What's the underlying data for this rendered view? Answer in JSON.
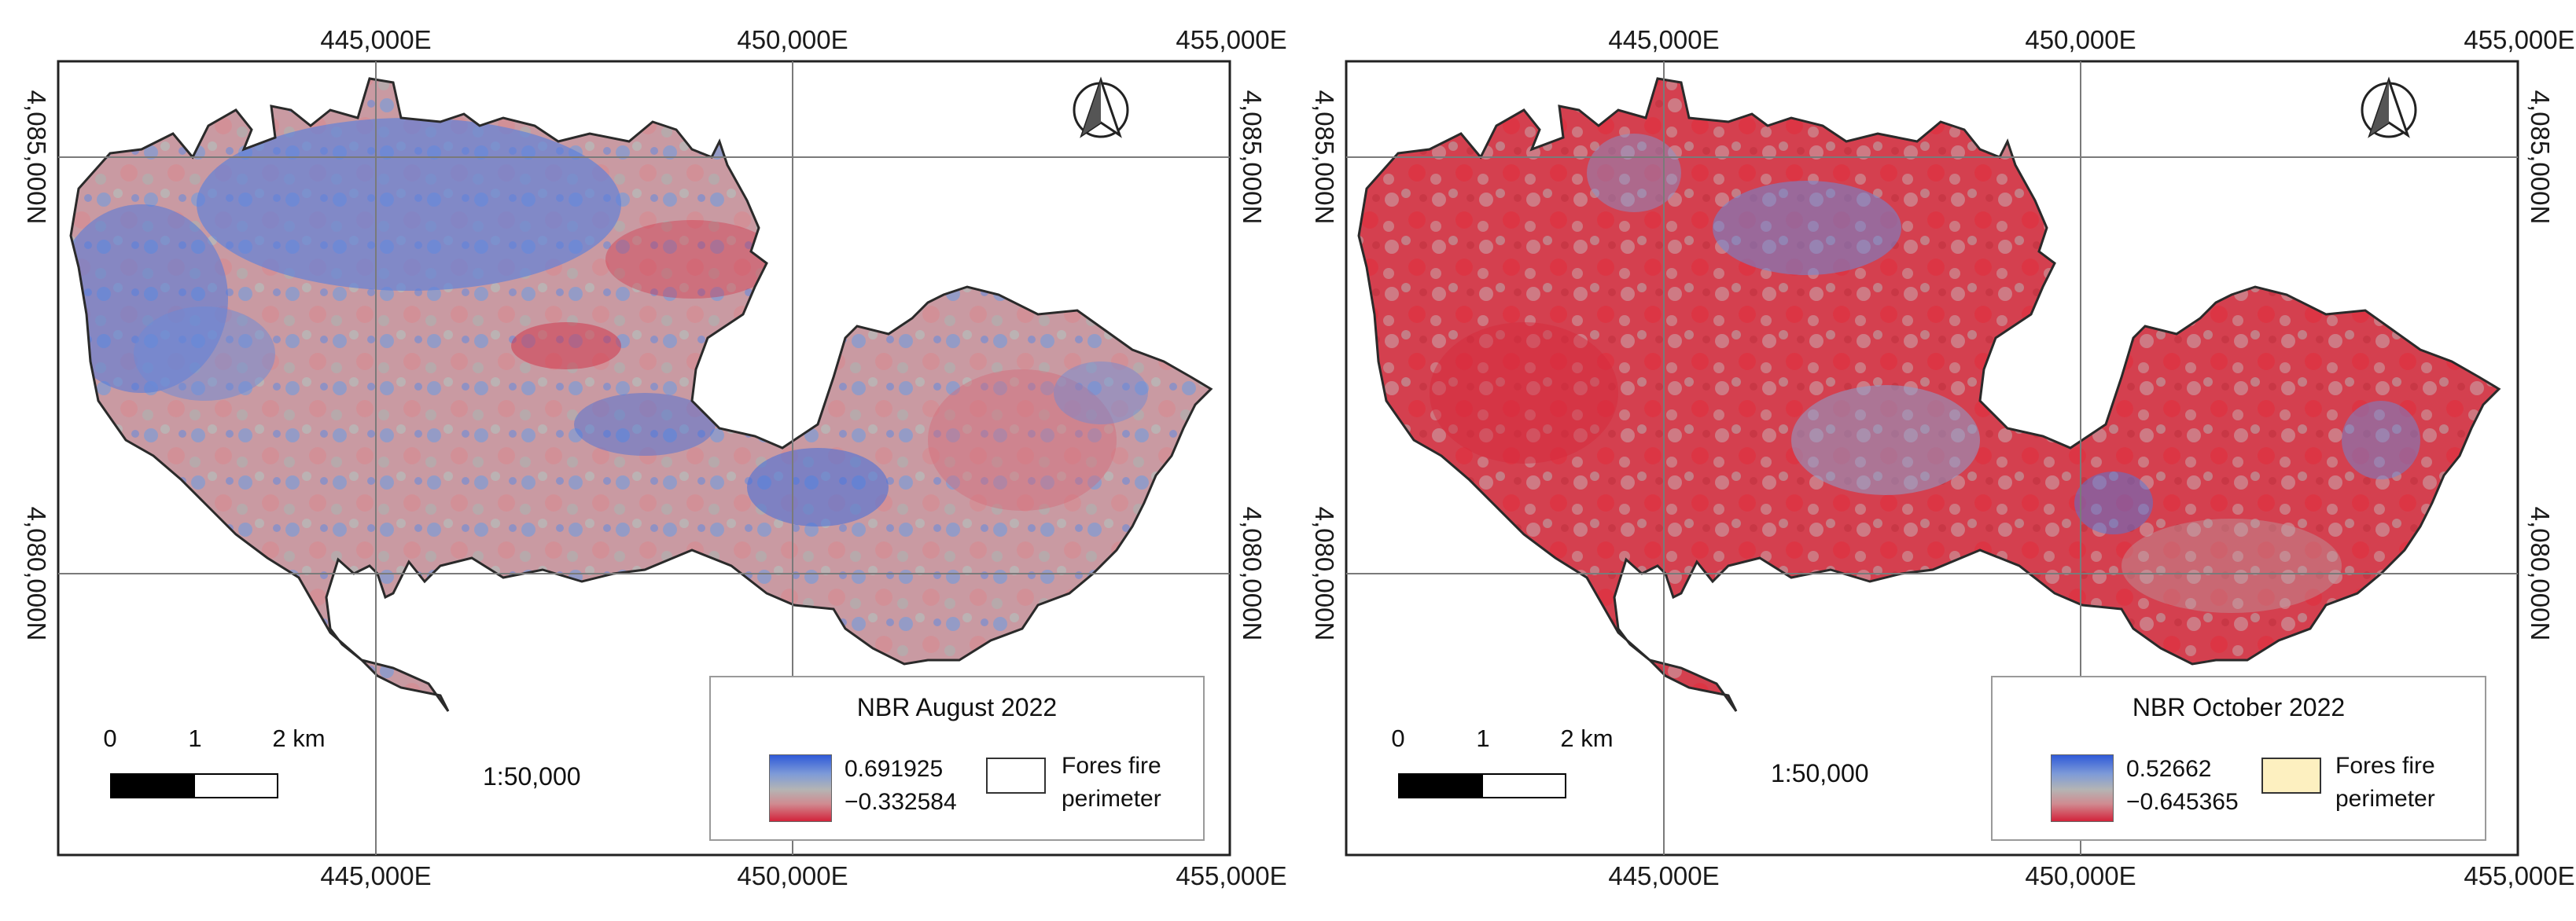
{
  "panels": [
    {
      "id": "august",
      "legend": {
        "title": "NBR August 2022",
        "max": "0.691925",
        "min": "−0.332584",
        "perimeter_label_line1": "Fores fire",
        "perimeter_label_line2": "perimeter",
        "perimeter_fill": "#ffffff"
      },
      "easting_top": [
        "445,000E",
        "450,000E",
        "455,000E"
      ],
      "easting_bottom": [
        "445,000E",
        "450,000E",
        "455,000E"
      ],
      "northing_left": [
        "4,085,000N",
        "4,080,000N"
      ],
      "northing_right": [
        "4,085,000N",
        "4,080,000N"
      ],
      "scale_ratio": "1:50,000",
      "scale_bar": {
        "labels": [
          "0",
          "1",
          "2 km"
        ]
      },
      "map_tint": "blue-dominant"
    },
    {
      "id": "october",
      "legend": {
        "title": "NBR October 2022",
        "max": "0.52662",
        "min": "−0.645365",
        "perimeter_label_line1": "Fores fire",
        "perimeter_label_line2": "perimeter",
        "perimeter_fill": "#fdf0c0"
      },
      "easting_top": [
        "445,000E",
        "450,000E",
        "455,000E"
      ],
      "easting_bottom": [
        "445,000E",
        "450,000E",
        "455,000E"
      ],
      "northing_left": [
        "4,085,000N",
        "4,080,000N"
      ],
      "northing_right": [
        "4,085,000N",
        "4,080,000N"
      ],
      "scale_ratio": "1:50,000",
      "scale_bar": {
        "labels": [
          "0",
          "1",
          "2 km"
        ]
      },
      "map_tint": "red-dominant"
    }
  ],
  "colors": {
    "nbr_high": "#2f5ad8",
    "nbr_mid": "#b4b4b4",
    "nbr_low": "#d3233a",
    "frame": "#222222",
    "grid": "#7a7a7a"
  },
  "icons": {
    "north_arrow": "north-arrow-icon"
  }
}
